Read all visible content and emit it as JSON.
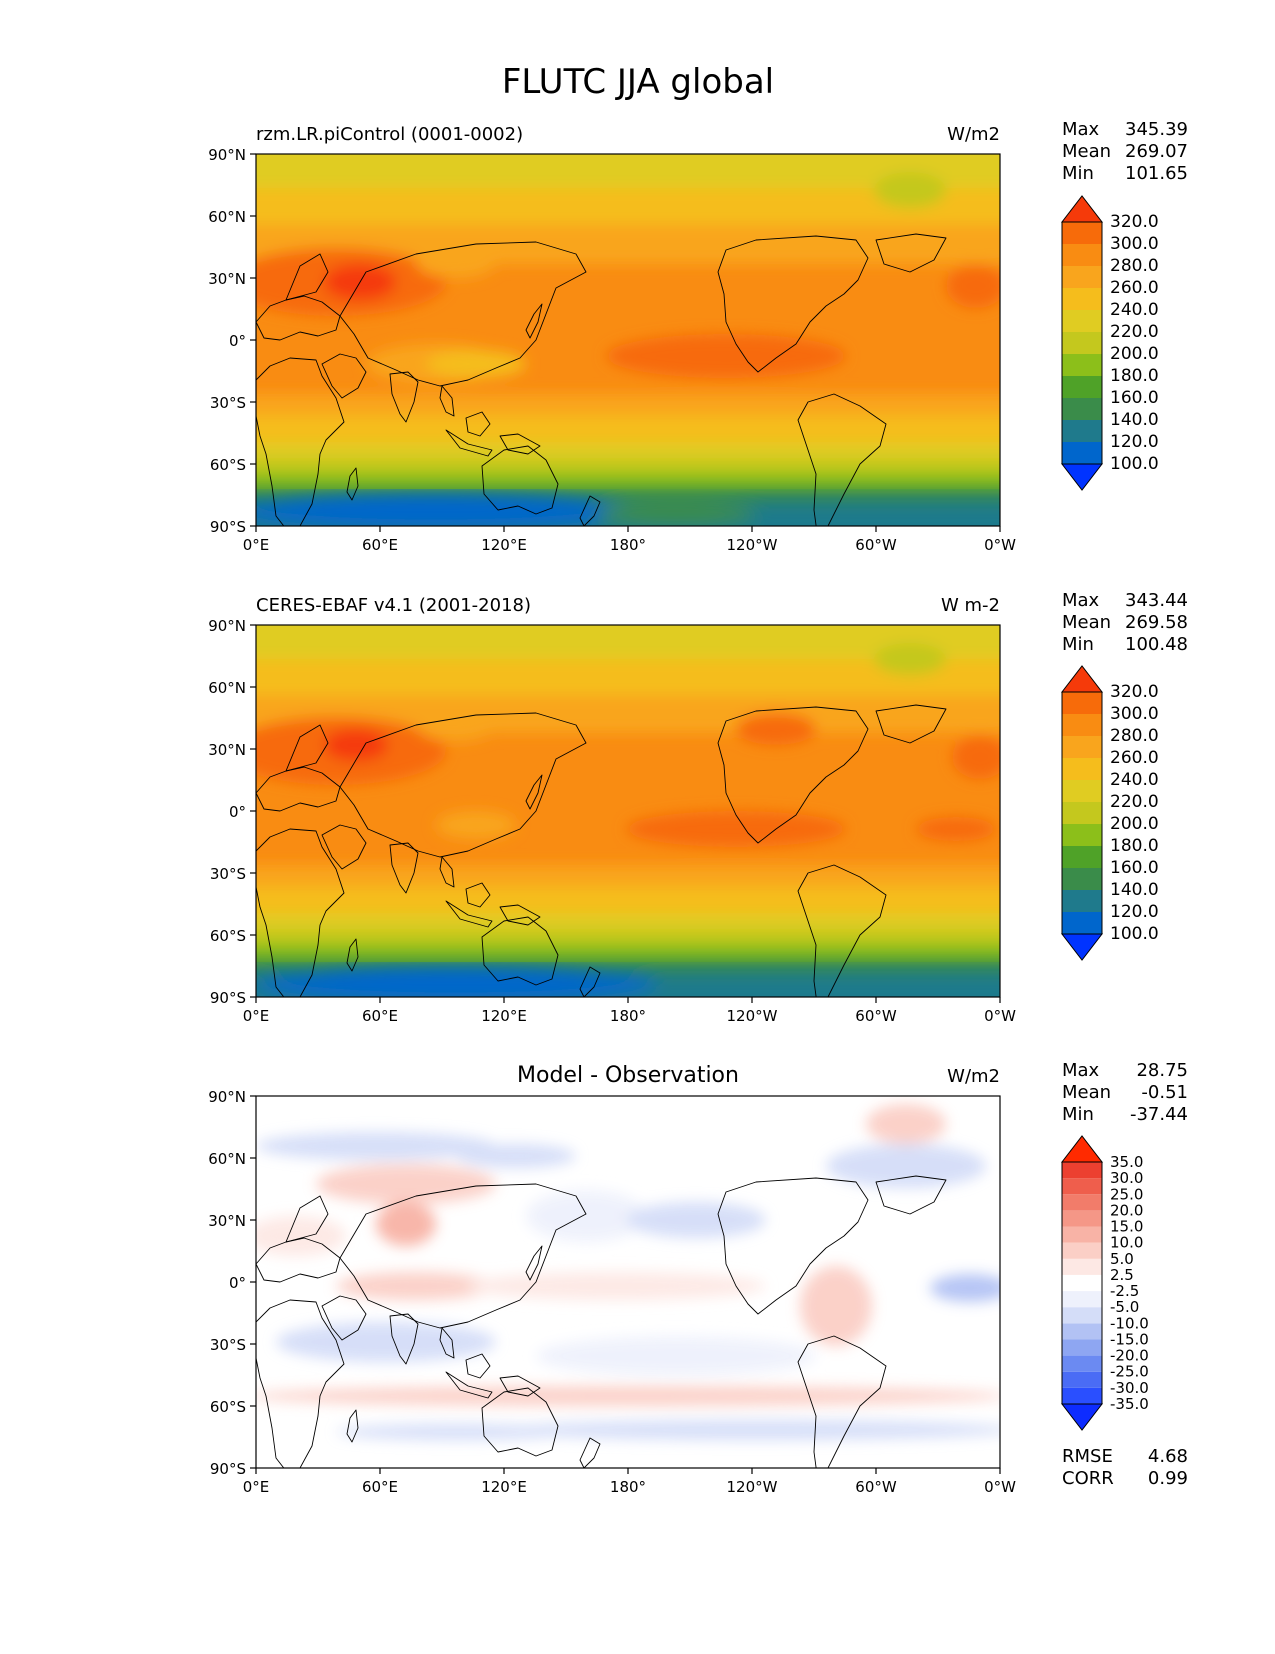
{
  "title": "FLUTC JJA global",
  "colors": {
    "abs_levels": [
      "#0033ff",
      "#0066cc",
      "#1f7a8c",
      "#3a8c4a",
      "#4fa228",
      "#8cbf1a",
      "#c4c81e",
      "#e0cc22",
      "#f5bd1c",
      "#f9a51d",
      "#f98c12",
      "#f76b0a",
      "#f53a0a"
    ],
    "diff_levels": [
      "#0d2cff",
      "#2a4fff",
      "#4a6cf5",
      "#6b8af2",
      "#8ea6f2",
      "#b2c2f4",
      "#d4ddf8",
      "#eef1fc",
      "#ffffff",
      "#fde8e4",
      "#fbcfc6",
      "#f8b3a6",
      "#f59787",
      "#f27c6a",
      "#ef5e4c",
      "#ec4030",
      "#ff2a00"
    ],
    "coast": "#000000"
  },
  "axes": {
    "lon_ticks": [
      "0°E",
      "60°E",
      "120°E",
      "180°",
      "120°W",
      "60°W",
      "0°W"
    ],
    "lat_ticks": [
      "90°N",
      "60°N",
      "30°N",
      "0°",
      "30°S",
      "60°S",
      "90°S"
    ]
  },
  "panels": {
    "p1": {
      "left_title": "rzm.LR.piControl (0001-0002)",
      "center_title": "",
      "units": "W/m2",
      "stats": {
        "max_label": "Max",
        "max": "345.39",
        "mean_label": "Mean",
        "mean": "269.07",
        "min_label": "Min",
        "min": "101.65"
      },
      "colorbar_labels": [
        "100.0",
        "120.0",
        "140.0",
        "160.0",
        "180.0",
        "200.0",
        "220.0",
        "240.0",
        "260.0",
        "280.0",
        "300.0",
        "320.0"
      ]
    },
    "p2": {
      "left_title": "CERES-EBAF v4.1 (2001-2018)",
      "center_title": "",
      "units": "W m-2",
      "stats": {
        "max_label": "Max",
        "max": "343.44",
        "mean_label": "Mean",
        "mean": "269.58",
        "min_label": "Min",
        "min": "100.48"
      },
      "colorbar_labels": [
        "100.0",
        "120.0",
        "140.0",
        "160.0",
        "180.0",
        "200.0",
        "220.0",
        "240.0",
        "260.0",
        "280.0",
        "300.0",
        "320.0"
      ]
    },
    "p3": {
      "left_title": "",
      "center_title": "Model - Observation",
      "units": "W/m2",
      "stats": {
        "max_label": "Max",
        "max": "28.75",
        "mean_label": "Mean",
        "mean": "-0.51",
        "min_label": "Min",
        "min": "-37.44"
      },
      "colorbar_labels": [
        "-35.0",
        "-30.0",
        "-25.0",
        "-20.0",
        "-15.0",
        "-10.0",
        "-5.0",
        "-2.5",
        "2.5",
        "5.0",
        "10.0",
        "15.0",
        "20.0",
        "25.0",
        "30.0",
        "35.0"
      ],
      "extra": {
        "rmse_label": "RMSE",
        "rmse": "4.68",
        "corr_label": "CORR",
        "corr": "0.99"
      }
    }
  },
  "chart_data": [
    {
      "type": "heatmap",
      "left_title": "rzm.LR.piControl (0001-0002)",
      "units": "W/m2",
      "x_axis": "longitude",
      "xlim": [
        0,
        360
      ],
      "y_axis": "latitude",
      "ylim": [
        -90,
        90
      ],
      "colorbar_levels": [
        100,
        120,
        140,
        160,
        180,
        200,
        220,
        240,
        260,
        280,
        300,
        320
      ],
      "colorbar_extend": "both",
      "zonal_mean_profile": {
        "lat": [
          90,
          75,
          60,
          45,
          30,
          15,
          0,
          -15,
          -30,
          -45,
          -60,
          -75,
          -90
        ],
        "value": [
          215,
          230,
          245,
          255,
          275,
          275,
          280,
          280,
          265,
          240,
          215,
          150,
          130
        ]
      },
      "stats": {
        "max": 345.39,
        "mean": 269.07,
        "min": 101.65
      }
    },
    {
      "type": "heatmap",
      "left_title": "CERES-EBAF v4.1 (2001-2018)",
      "units": "W m-2",
      "x_axis": "longitude",
      "xlim": [
        0,
        360
      ],
      "y_axis": "latitude",
      "ylim": [
        -90,
        90
      ],
      "colorbar_levels": [
        100,
        120,
        140,
        160,
        180,
        200,
        220,
        240,
        260,
        280,
        300,
        320
      ],
      "colorbar_extend": "both",
      "zonal_mean_profile": {
        "lat": [
          90,
          75,
          60,
          45,
          30,
          15,
          0,
          -15,
          -30,
          -45,
          -60,
          -75,
          -90
        ],
        "value": [
          218,
          232,
          247,
          257,
          277,
          277,
          282,
          280,
          266,
          241,
          214,
          148,
          128
        ]
      },
      "stats": {
        "max": 343.44,
        "mean": 269.58,
        "min": 100.48
      }
    },
    {
      "type": "heatmap",
      "center_title": "Model - Observation",
      "units": "W/m2",
      "x_axis": "longitude",
      "xlim": [
        0,
        360
      ],
      "y_axis": "latitude",
      "ylim": [
        -90,
        90
      ],
      "colorbar_levels": [
        -35,
        -30,
        -25,
        -20,
        -15,
        -10,
        -5,
        -2.5,
        2.5,
        5,
        10,
        15,
        20,
        25,
        30,
        35
      ],
      "colorbar_extend": "both",
      "stats": {
        "max": 28.75,
        "mean": -0.51,
        "min": -37.44,
        "rmse": 4.68,
        "corr": 0.99
      }
    }
  ]
}
